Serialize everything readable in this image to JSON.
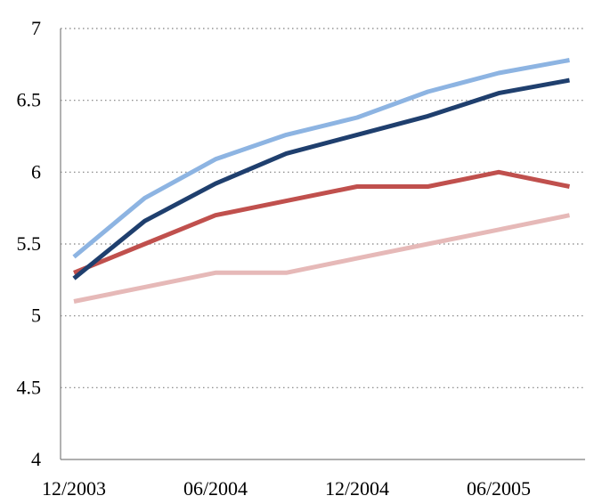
{
  "chart_data": {
    "type": "line",
    "title": "",
    "xlabel": "",
    "ylabel": "",
    "ylim": [
      4,
      7
    ],
    "y_ticks": [
      "4",
      "4.5",
      "5",
      "5.5",
      "6",
      "6.5",
      "7"
    ],
    "x": [
      "12/2003",
      "03/2004",
      "06/2004",
      "09/2004",
      "12/2004",
      "03/2005",
      "06/2005",
      "09/2005"
    ],
    "x_tick_labels": [
      "12/2003",
      "06/2004",
      "12/2004",
      "06/2005"
    ],
    "grid": true,
    "legend": "none",
    "series": [
      {
        "color": "#8db4e2",
        "values": [
          5.41,
          5.82,
          6.09,
          6.26,
          6.38,
          6.56,
          6.69,
          6.78
        ]
      },
      {
        "color": "#1f3f6e",
        "values": [
          5.26,
          5.66,
          5.92,
          6.13,
          6.26,
          6.39,
          6.55,
          6.64
        ]
      },
      {
        "color": "#c0504d",
        "values": [
          5.3,
          5.5,
          5.7,
          5.8,
          5.9,
          5.9,
          6.0,
          5.9
        ]
      },
      {
        "color": "#e6b9b8",
        "values": [
          5.1,
          5.2,
          5.3,
          5.3,
          5.4,
          5.5,
          5.6,
          5.7
        ]
      }
    ]
  }
}
